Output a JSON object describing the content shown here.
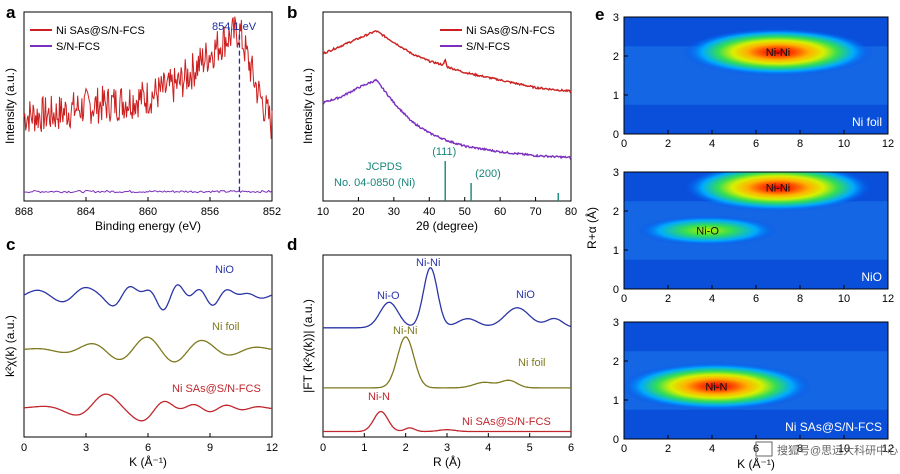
{
  "panels": [
    {
      "id": "a",
      "label": "a"
    },
    {
      "id": "b",
      "label": "b"
    },
    {
      "id": "c",
      "label": "c"
    },
    {
      "id": "d",
      "label": "d"
    },
    {
      "id": "e",
      "label": "e"
    }
  ],
  "chart_data": [
    {
      "panel": "a",
      "type": "line",
      "xlabel": "Binding energy (eV)",
      "ylabel": "Intensity (a.u.)",
      "xlim": [
        868,
        852
      ],
      "xticks": [
        "868",
        "864",
        "860",
        "856",
        "852"
      ],
      "annotation": {
        "text": "854.1 eV",
        "x": 854.1
      },
      "legend": [
        "Ni SAs@S/N-FCS",
        "S/N-FCS"
      ],
      "colors": {
        "Ni SAs@S/N-FCS": "#cc1f1f",
        "S/N-FCS": "#7b2fbe"
      },
      "series": [
        {
          "name": "Ni SAs@S/N-FCS",
          "x": [
            868,
            866,
            864,
            862,
            860,
            858,
            856,
            855,
            854.1,
            853,
            852
          ],
          "y": [
            0.45,
            0.46,
            0.5,
            0.52,
            0.55,
            0.62,
            0.78,
            0.86,
            0.9,
            0.6,
            0.4
          ]
        },
        {
          "name": "S/N-FCS",
          "x": [
            868,
            864,
            860,
            856,
            852
          ],
          "y": [
            0.05,
            0.05,
            0.05,
            0.05,
            0.05
          ]
        }
      ]
    },
    {
      "panel": "b",
      "type": "line",
      "xlabel": "2θ (degree)",
      "ylabel": "Intensity (a.u.)",
      "xlim": [
        10,
        80
      ],
      "xticks": [
        "10",
        "20",
        "30",
        "40",
        "50",
        "60",
        "70",
        "80"
      ],
      "legend": [
        "Ni SAs@S/N-FCS",
        "S/N-FCS"
      ],
      "colors": {
        "Ni SAs@S/N-FCS": "#cc1f1f",
        "S/N-FCS": "#7b2fbe"
      },
      "reference": {
        "line1": "JCPDS",
        "line2": "No. 04-0850 (Ni)",
        "color": "#16877a",
        "peaks": [
          {
            "x": 44.5,
            "h": 1.0,
            "label": "(111)"
          },
          {
            "x": 51.8,
            "h": 0.45,
            "label": "(200)"
          },
          {
            "x": 76.4,
            "h": 0.2,
            "label": ""
          }
        ]
      },
      "series": [
        {
          "name": "Ni SAs@S/N-FCS",
          "x": [
            10,
            15,
            20,
            25,
            30,
            35,
            40,
            44,
            44.5,
            45,
            50,
            60,
            70,
            80
          ],
          "y": [
            0.78,
            0.82,
            0.86,
            0.9,
            0.84,
            0.78,
            0.74,
            0.72,
            0.75,
            0.71,
            0.68,
            0.64,
            0.6,
            0.58
          ]
        },
        {
          "name": "S/N-FCS",
          "x": [
            10,
            15,
            20,
            25,
            30,
            35,
            40,
            45,
            50,
            60,
            70,
            80
          ],
          "y": [
            0.52,
            0.55,
            0.6,
            0.64,
            0.52,
            0.42,
            0.36,
            0.32,
            0.29,
            0.26,
            0.24,
            0.23
          ]
        }
      ]
    },
    {
      "panel": "c",
      "type": "line",
      "xlabel": "K (Å⁻¹)",
      "ylabel": "k²χ(k) (a.u.)",
      "xlim": [
        0,
        12
      ],
      "xticks": [
        "0",
        "3",
        "6",
        "9",
        "12"
      ],
      "series": [
        {
          "name": "NiO",
          "color": "#2b36a6",
          "offset": 0.78
        },
        {
          "name": "Ni foil",
          "color": "#7d7a1f",
          "offset": 0.48
        },
        {
          "name": "Ni SAs@S/N-FCS",
          "color": "#c0272d",
          "offset": 0.16
        }
      ]
    },
    {
      "panel": "d",
      "type": "line",
      "xlabel": "R (Å)",
      "ylabel": "|FT (k²χ(k))| (a.u.)",
      "xlim": [
        0,
        6
      ],
      "xticks": [
        "0",
        "1",
        "2",
        "3",
        "4",
        "5",
        "6"
      ],
      "series": [
        {
          "name": "NiO",
          "color": "#2b36a6",
          "peaks": [
            {
              "label": "Ni-O",
              "x": 1.6
            },
            {
              "label": "Ni-Ni",
              "x": 2.6
            },
            {
              "label": "NiO",
              "x": 4.8
            }
          ]
        },
        {
          "name": "Ni foil",
          "color": "#7d7a1f",
          "peaks": [
            {
              "label": "Ni-Ni",
              "x": 2.0
            }
          ]
        },
        {
          "name": "Ni SAs@S/N-FCS",
          "color": "#c0272d",
          "peaks": [
            {
              "label": "Ni-N",
              "x": 1.4
            }
          ]
        }
      ]
    },
    {
      "panel": "e",
      "type": "heatmap",
      "xlabel": "K (Å⁻¹)",
      "ylabel": "R+α (Å)",
      "xlim": [
        0,
        12
      ],
      "ylim": [
        0,
        3
      ],
      "xticks": [
        "0",
        "2",
        "4",
        "6",
        "8",
        "10",
        "12"
      ],
      "yticks": [
        "0",
        "1",
        "2",
        "3"
      ],
      "maps": [
        {
          "name": "Ni foil",
          "spots": [
            {
              "label": "Ni-Ni",
              "k": 7.0,
              "r": 2.1,
              "level": 1.0
            }
          ]
        },
        {
          "name": "NiO",
          "spots": [
            {
              "label": "Ni-Ni",
              "k": 7.0,
              "r": 2.6,
              "level": 1.0
            },
            {
              "label": "Ni-O",
              "k": 3.8,
              "r": 1.5,
              "level": 0.5
            }
          ]
        },
        {
          "name": "Ni SAs@S/N-FCS",
          "spots": [
            {
              "label": "Ni-N",
              "k": 4.2,
              "r": 1.35,
              "level": 1.0
            }
          ]
        }
      ]
    }
  ],
  "watermark": "搜狐号@思远大科研中心"
}
